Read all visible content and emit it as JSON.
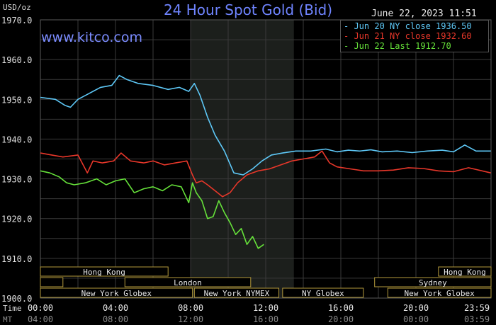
{
  "header": {
    "title": "24 Hour Spot Gold (Bid)",
    "unit_label": "USD/oz",
    "datetime": "June 22, 2023 11:51",
    "brand": "www.kitco.com"
  },
  "legend": [
    {
      "label": "- Jun 20 NY close 1936.50",
      "color": "#5ec8f7"
    },
    {
      "label": "- Jun 21 NY close 1932.60",
      "color": "#e8372a"
    },
    {
      "label": "- Jun 22 Last 1912.70",
      "color": "#66e23a"
    }
  ],
  "sessions": [
    {
      "label": "Hong Kong",
      "row": 0,
      "start": 0,
      "end": 6.8
    },
    {
      "label": "",
      "row": 1,
      "start": 0,
      "end": 1.2
    },
    {
      "label": "London",
      "row": 1,
      "start": 4.5,
      "end": 11.2
    },
    {
      "label": "New York Globex",
      "row": 2,
      "start": 0,
      "end": 8.1
    },
    {
      "label": "New York NYMEX",
      "row": 2,
      "start": 8.2,
      "end": 12.7
    },
    {
      "label": "NY Globex",
      "row": 2,
      "start": 12.9,
      "end": 17.2
    },
    {
      "label": "Hong Kong",
      "row": 0,
      "start": 21.2,
      "end": 24
    },
    {
      "label": "Sydney",
      "row": 1,
      "start": 17.8,
      "end": 24
    },
    {
      "label": "New York Globex",
      "row": 2,
      "start": 18.5,
      "end": 24
    }
  ],
  "chart_data": {
    "type": "line",
    "title": "24 Hour Spot Gold (Bid)",
    "ylabel": "USD/oz",
    "x_axis_label": "Time",
    "x_axis_label_secondary": "MT",
    "ylim": [
      1900,
      1970
    ],
    "xlim": [
      0,
      24
    ],
    "y_ticks": [
      "1900.0",
      "1910.0",
      "1920.0",
      "1930.0",
      "1940.0",
      "1950.0",
      "1960.0",
      "1970.0"
    ],
    "x_ticks": [
      "00:00",
      "04:00",
      "08:00",
      "12:00",
      "16:00",
      "20:00",
      "23:59"
    ],
    "x_ticks_secondary": [
      "04:00",
      "08:00",
      "12:00",
      "16:00",
      "20:00",
      "00:00",
      "03:59"
    ],
    "shaded_region": [
      8,
      13.5
    ],
    "grid": true,
    "legend_position": "top-right",
    "series": [
      {
        "name": "Jun 20 NY close 1936.50",
        "color": "#5ec8f7",
        "x": [
          0,
          0.8,
          1.3,
          1.6,
          2.0,
          2.6,
          3.2,
          3.8,
          4.2,
          4.6,
          5.2,
          6.0,
          6.8,
          7.4,
          7.9,
          8.2,
          8.5,
          8.9,
          9.3,
          9.8,
          10.3,
          10.8,
          11.3,
          11.8,
          12.3,
          12.9,
          13.6,
          14.4,
          15.2,
          15.8,
          16.4,
          17.0,
          17.6,
          18.2,
          19.0,
          19.8,
          20.6,
          21.4,
          22.0,
          22.6,
          23.2,
          23.99
        ],
        "y": [
          1950.5,
          1950.0,
          1948.5,
          1948.0,
          1950.0,
          1951.5,
          1953.0,
          1953.5,
          1956.0,
          1955.0,
          1954.0,
          1953.5,
          1952.5,
          1953.0,
          1952.0,
          1954.0,
          1951.0,
          1945.5,
          1941.0,
          1937.0,
          1931.5,
          1931.0,
          1932.5,
          1934.5,
          1936.0,
          1936.5,
          1937.0,
          1937.0,
          1937.5,
          1936.8,
          1937.2,
          1937.0,
          1937.3,
          1936.8,
          1937.0,
          1936.6,
          1937.0,
          1937.2,
          1936.8,
          1938.5,
          1937.0,
          1937.0
        ]
      },
      {
        "name": "Jun 21 NY close 1932.60",
        "color": "#e8372a",
        "x": [
          0,
          0.6,
          1.2,
          2.0,
          2.5,
          2.8,
          3.3,
          3.9,
          4.3,
          4.8,
          5.5,
          6.0,
          6.6,
          7.2,
          7.8,
          8.1,
          8.3,
          8.6,
          8.9,
          9.3,
          9.7,
          10.1,
          10.5,
          11.0,
          11.6,
          12.2,
          12.8,
          13.4,
          14.0,
          14.6,
          15.0,
          15.4,
          15.8,
          16.5,
          17.2,
          18.0,
          18.8,
          19.6,
          20.4,
          21.2,
          22.0,
          22.8,
          23.99
        ],
        "y": [
          1936.5,
          1936.0,
          1935.5,
          1936.0,
          1931.5,
          1934.5,
          1934.0,
          1934.5,
          1936.5,
          1934.5,
          1934.0,
          1934.5,
          1933.5,
          1934.0,
          1934.5,
          1931.0,
          1929.0,
          1929.5,
          1928.5,
          1927.0,
          1925.5,
          1926.5,
          1929.0,
          1931.0,
          1932.0,
          1932.5,
          1933.5,
          1934.5,
          1935.0,
          1935.5,
          1937.0,
          1934.0,
          1933.0,
          1932.5,
          1932.0,
          1932.0,
          1932.2,
          1932.8,
          1932.6,
          1932.0,
          1931.8,
          1932.8,
          1931.5
        ]
      },
      {
        "name": "Jun 22 Last 1912.70",
        "color": "#66e23a",
        "x": [
          0,
          0.5,
          1.0,
          1.4,
          1.8,
          2.4,
          3.0,
          3.5,
          4.0,
          4.5,
          5.0,
          5.5,
          6.0,
          6.5,
          7.0,
          7.5,
          7.9,
          8.1,
          8.3,
          8.6,
          8.9,
          9.2,
          9.5,
          9.8,
          10.1,
          10.4,
          10.7,
          11.0,
          11.3,
          11.6,
          11.9
        ],
        "y": [
          1932.0,
          1931.5,
          1930.5,
          1929.0,
          1928.5,
          1929.0,
          1930.0,
          1928.5,
          1929.5,
          1930.0,
          1926.5,
          1927.5,
          1928.0,
          1927.0,
          1928.5,
          1928.0,
          1924.0,
          1929.0,
          1926.5,
          1924.5,
          1920.0,
          1920.5,
          1924.5,
          1921.5,
          1919.0,
          1916.0,
          1917.5,
          1913.5,
          1915.5,
          1912.5,
          1913.5
        ]
      }
    ]
  }
}
